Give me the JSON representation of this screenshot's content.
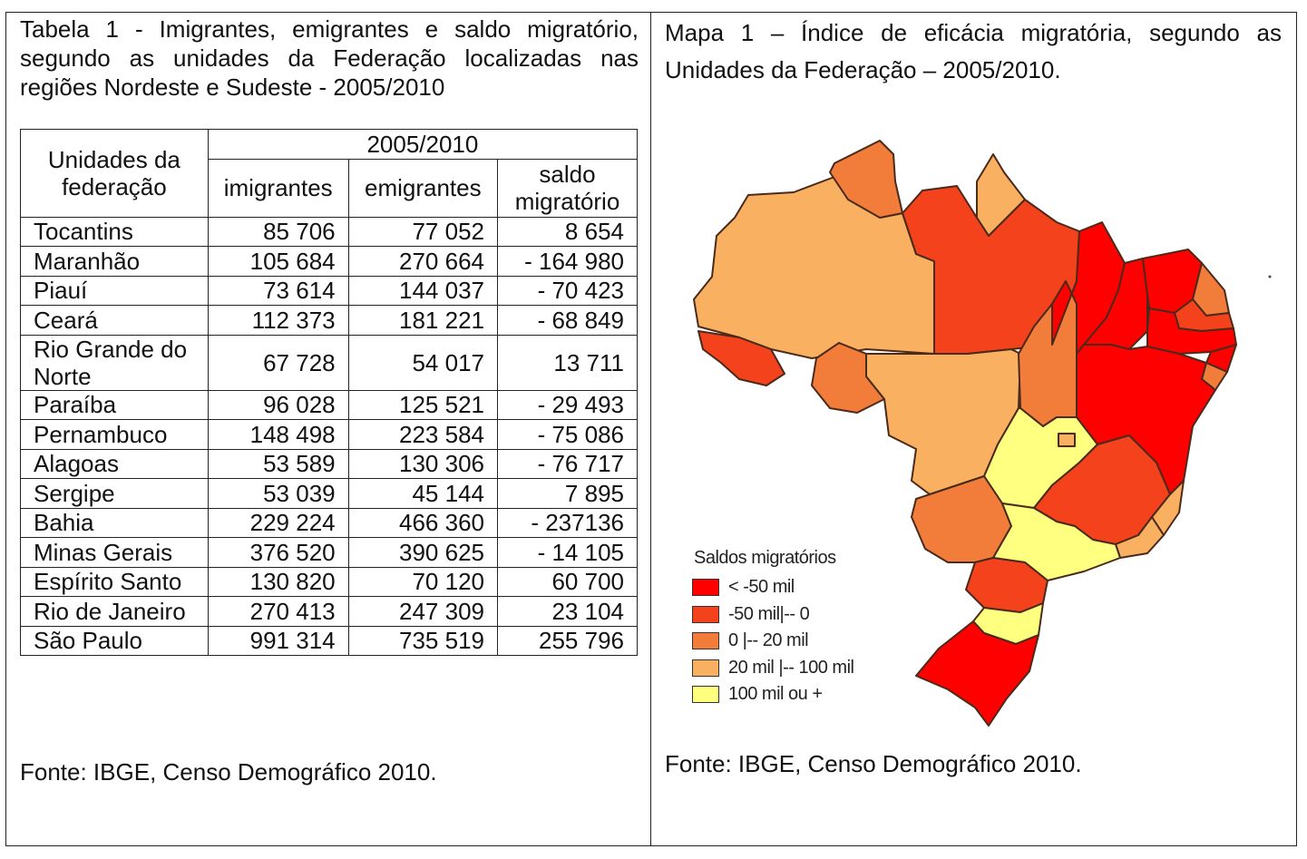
{
  "colors": {
    "lt_neg50": "#ff0000",
    "neg50_0": "#f3421c",
    "zero_20": "#f27d3b",
    "twenty_100": "#f9b060",
    "plus100": "#ffff80"
  },
  "table": {
    "caption": "Tabela 1 - Imigrantes, emigrantes e saldo migratório, segundo as unidades da Federação localizadas nas regiões Nordeste e Sudeste - 2005/2010",
    "header_uf": "Unidades da federação",
    "header_period": "2005/2010",
    "header_imig": "imigrantes",
    "header_emig": "emigrantes",
    "header_saldo": "saldo migratório",
    "rows": [
      {
        "uf": "Tocantins",
        "imig": "85 706",
        "emig": "77 052",
        "saldo": "8 654"
      },
      {
        "uf": "Maranhão",
        "imig": "105 684",
        "emig": "270 664",
        "saldo": "- 164 980"
      },
      {
        "uf": "Piauí",
        "imig": "73 614",
        "emig": "144 037",
        "saldo": "- 70 423"
      },
      {
        "uf": "Ceará",
        "imig": "112 373",
        "emig": "181 221",
        "saldo": "- 68 849"
      },
      {
        "uf": "Rio Grande do Norte",
        "imig": "67 728",
        "emig": "54 017",
        "saldo": "13 711"
      },
      {
        "uf": "Paraíba",
        "imig": "96 028",
        "emig": "125 521",
        "saldo": "- 29 493"
      },
      {
        "uf": "Pernambuco",
        "imig": "148 498",
        "emig": "223 584",
        "saldo": "- 75 086"
      },
      {
        "uf": "Alagoas",
        "imig": "53 589",
        "emig": "130 306",
        "saldo": "- 76 717"
      },
      {
        "uf": "Sergipe",
        "imig": "53 039",
        "emig": "45 144",
        "saldo": "7 895"
      },
      {
        "uf": "Bahia",
        "imig": "229 224",
        "emig": "466 360",
        "saldo": "- 237136"
      },
      {
        "uf": "Minas Gerais",
        "imig": "376 520",
        "emig": "390 625",
        "saldo": "- 14 105"
      },
      {
        "uf": "Espírito Santo",
        "imig": "130 820",
        "emig": "70 120",
        "saldo": "60 700"
      },
      {
        "uf": "Rio de Janeiro",
        "imig": "270 413",
        "emig": "247 309",
        "saldo": "23 104"
      },
      {
        "uf": "São Paulo",
        "imig": "991 314",
        "emig": "735 519",
        "saldo": "255 796"
      }
    ],
    "source": "Fonte: IBGE, Censo Demográfico 2010."
  },
  "map": {
    "caption": "Mapa 1 – Índice de eficácia migratória, segundo as Unidades da Federação – 2005/2010.",
    "legend_title": "Saldos migratórios",
    "legend": [
      {
        "label": "< -50 mil",
        "color_key": "lt_neg50"
      },
      {
        "label": "-50 mil|-- 0",
        "color_key": "neg50_0"
      },
      {
        "label": "0 |-- 20 mil",
        "color_key": "zero_20"
      },
      {
        "label": "20 mil |-- 100 mil",
        "color_key": "twenty_100"
      },
      {
        "label": "100 mil ou +",
        "color_key": "plus100"
      }
    ],
    "source": "Fonte: IBGE, Censo Demográfico 2010."
  }
}
